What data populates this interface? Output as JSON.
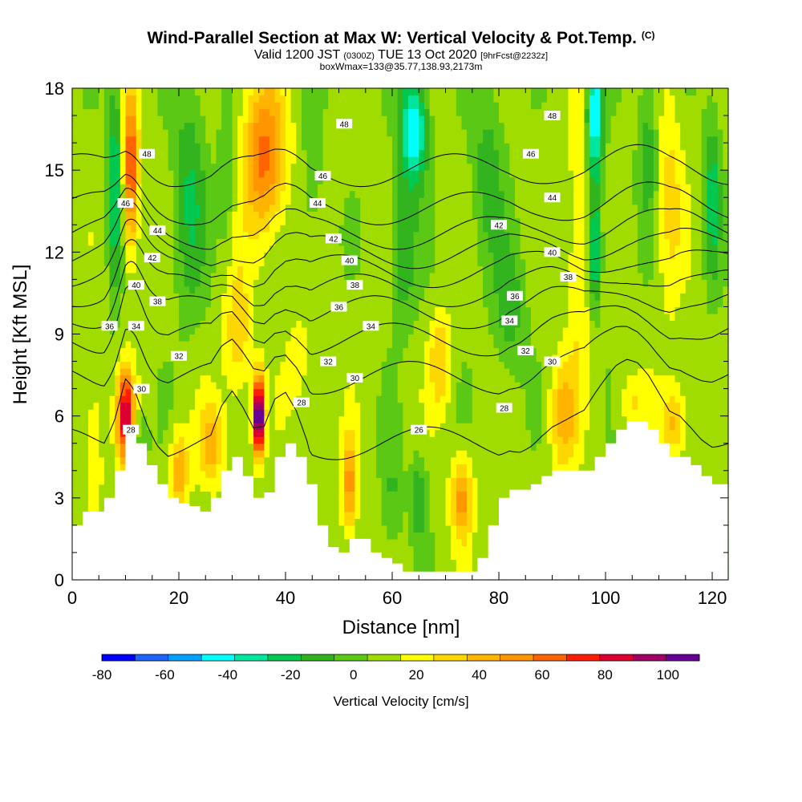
{
  "header": {
    "title_main": "Wind-Parallel Section at Max W: Vertical Velocity & Pot.Temp.",
    "title_copyright": "(C)",
    "valid_prefix": "Valid 1200 JST",
    "valid_utc": "(0300Z)",
    "valid_date": "TUE 13 Oct 2020",
    "forecast_info": "[9hrFcst@2232z]",
    "box_info": "boxWmax=133@35.77,138.93,2173m"
  },
  "chart_data": {
    "type": "heatmap",
    "title": "Wind-Parallel Section at Max W: Vertical Velocity & Pot.Temp.",
    "xlabel": "Distance [nm]",
    "ylabel": "Height [Kft MSL]",
    "xlim": [
      0,
      123
    ],
    "ylim": [
      0,
      18
    ],
    "x_ticks": [
      "0",
      "20",
      "40",
      "60",
      "80",
      "100",
      "120"
    ],
    "y_ticks": [
      "0",
      "3",
      "6",
      "9",
      "12",
      "15",
      "18"
    ],
    "colorbar": {
      "label": "Vertical Velocity [cm/s]",
      "min": -80,
      "max": 110,
      "step": 10,
      "tick_labels": [
        "-80",
        "-60",
        "-40",
        "-20",
        "0",
        "20",
        "40",
        "60",
        "80",
        "100"
      ],
      "colors": [
        "#0000ff",
        "#1e64ff",
        "#00a0ff",
        "#00ffff",
        "#00e6a0",
        "#00c850",
        "#32b41e",
        "#5ac814",
        "#a0dc00",
        "#ffff00",
        "#ffd700",
        "#ffb400",
        "#ff9600",
        "#ff6400",
        "#ff1e00",
        "#dc0032",
        "#a00064",
        "#640096"
      ]
    },
    "terrain_kft": [
      [
        0,
        2.0
      ],
      [
        2,
        2.5
      ],
      [
        4,
        2.5
      ],
      [
        6,
        3.0
      ],
      [
        8,
        4.0
      ],
      [
        10,
        5.5
      ],
      [
        12,
        5.0
      ],
      [
        14,
        4.2
      ],
      [
        16,
        3.5
      ],
      [
        18,
        3.0
      ],
      [
        20,
        2.8
      ],
      [
        22,
        2.7
      ],
      [
        24,
        2.5
      ],
      [
        26,
        3.0
      ],
      [
        28,
        4.0
      ],
      [
        30,
        4.5
      ],
      [
        32,
        3.8
      ],
      [
        34,
        3.0
      ],
      [
        36,
        3.2
      ],
      [
        38,
        4.5
      ],
      [
        40,
        5.0
      ],
      [
        42,
        4.5
      ],
      [
        44,
        3.5
      ],
      [
        46,
        2.0
      ],
      [
        48,
        1.2
      ],
      [
        50,
        1.0
      ],
      [
        52,
        1.5
      ],
      [
        54,
        1.5
      ],
      [
        56,
        1.0
      ],
      [
        58,
        0.8
      ],
      [
        60,
        0.6
      ],
      [
        62,
        0.3
      ],
      [
        64,
        0.3
      ],
      [
        66,
        0.3
      ],
      [
        68,
        0.3
      ],
      [
        70,
        0.3
      ],
      [
        72,
        0.3
      ],
      [
        74,
        0.3
      ],
      [
        76,
        0.8
      ],
      [
        78,
        2.0
      ],
      [
        80,
        3.0
      ],
      [
        82,
        3.3
      ],
      [
        84,
        3.3
      ],
      [
        86,
        3.5
      ],
      [
        88,
        3.8
      ],
      [
        90,
        4.0
      ],
      [
        92,
        4.0
      ],
      [
        94,
        4.0
      ],
      [
        96,
        4.0
      ],
      [
        98,
        4.5
      ],
      [
        100,
        5.0
      ],
      [
        102,
        5.5
      ],
      [
        104,
        5.8
      ],
      [
        106,
        5.8
      ],
      [
        108,
        5.5
      ],
      [
        110,
        5.0
      ],
      [
        112,
        4.5
      ],
      [
        114,
        4.5
      ],
      [
        116,
        4.2
      ],
      [
        118,
        3.8
      ],
      [
        120,
        3.5
      ],
      [
        122,
        3.5
      ],
      [
        123,
        3.5
      ]
    ],
    "w_features": [
      {
        "x": 10,
        "y": 6.0,
        "sx": 1.6,
        "sy": 1.6,
        "w": 75
      },
      {
        "x": 11,
        "y": 15.0,
        "sx": 1.4,
        "sy": 3.0,
        "w": 60
      },
      {
        "x": 35,
        "y": 6.0,
        "sx": 1.0,
        "sy": 1.4,
        "w": 115
      },
      {
        "x": 36,
        "y": 15.5,
        "sx": 4.0,
        "sy": 2.8,
        "w": 50
      },
      {
        "x": 31,
        "y": 9.0,
        "sx": 2.5,
        "sy": 2.5,
        "w": 25
      },
      {
        "x": 20,
        "y": 4.0,
        "sx": 1.8,
        "sy": 1.5,
        "w": 35
      },
      {
        "x": 26,
        "y": 5.0,
        "sx": 2.5,
        "sy": 1.5,
        "w": 30
      },
      {
        "x": 52,
        "y": 3.5,
        "sx": 1.5,
        "sy": 1.8,
        "w": 40
      },
      {
        "x": 73,
        "y": 3.0,
        "sx": 2.0,
        "sy": 1.5,
        "w": 40
      },
      {
        "x": 69,
        "y": 8.0,
        "sx": 2.0,
        "sy": 1.8,
        "w": 25
      },
      {
        "x": 92,
        "y": 6.0,
        "sx": 2.5,
        "sy": 2.0,
        "w": 30
      },
      {
        "x": 95,
        "y": 12.0,
        "sx": 2.0,
        "sy": 5.0,
        "w": 20
      },
      {
        "x": 112,
        "y": 14.0,
        "sx": 2.5,
        "sy": 4.0,
        "w": 20
      },
      {
        "x": 113,
        "y": 5.8,
        "sx": 2.5,
        "sy": 1.3,
        "w": 30
      },
      {
        "x": 105,
        "y": 6.5,
        "sx": 3.0,
        "sy": 1.0,
        "w": 15
      },
      {
        "x": 4,
        "y": 5.0,
        "sx": 2.0,
        "sy": 3.0,
        "w": 15
      },
      {
        "x": 43,
        "y": 8.0,
        "sx": 3.0,
        "sy": 2.5,
        "w": 10
      },
      {
        "x": 8,
        "y": 14.5,
        "sx": 1.3,
        "sy": 4.0,
        "w": -35
      },
      {
        "x": 22,
        "y": 14.0,
        "sx": 3.0,
        "sy": 4.0,
        "w": -25
      },
      {
        "x": 29,
        "y": 15.0,
        "sx": 1.5,
        "sy": 3.0,
        "w": -15
      },
      {
        "x": 45,
        "y": 14.0,
        "sx": 2.5,
        "sy": 3.5,
        "w": -10
      },
      {
        "x": 64,
        "y": 16.5,
        "sx": 2.5,
        "sy": 2.0,
        "w": -55
      },
      {
        "x": 62,
        "y": 12.0,
        "sx": 2.5,
        "sy": 2.5,
        "w": -25
      },
      {
        "x": 78,
        "y": 15.0,
        "sx": 3.0,
        "sy": 3.0,
        "w": -20
      },
      {
        "x": 98,
        "y": 17.0,
        "sx": 1.5,
        "sy": 2.5,
        "w": -55
      },
      {
        "x": 98,
        "y": 12.0,
        "sx": 1.2,
        "sy": 2.0,
        "w": -40
      },
      {
        "x": 108,
        "y": 16.0,
        "sx": 2.0,
        "sy": 3.0,
        "w": -20
      },
      {
        "x": 120,
        "y": 14.0,
        "sx": 1.5,
        "sy": 3.0,
        "w": -30
      },
      {
        "x": 60,
        "y": 3.0,
        "sx": 2.0,
        "sy": 2.0,
        "w": -15
      },
      {
        "x": 65,
        "y": 3.0,
        "sx": 1.5,
        "sy": 1.5,
        "w": -25
      },
      {
        "x": 82,
        "y": 10.0,
        "sx": 3.0,
        "sy": 2.5,
        "w": -20
      },
      {
        "x": 13,
        "y": 5.0,
        "sx": 1.2,
        "sy": 1.2,
        "w": -15
      }
    ],
    "theta_levels": [
      28,
      30,
      32,
      34,
      36,
      38,
      40,
      42,
      44,
      46
    ],
    "theta_base_kft": {
      "28": 5.0,
      "30": 7.4,
      "32": 8.8,
      "34": 9.8,
      "36": 10.6,
      "38": 11.3,
      "40": 12.0,
      "42": 12.7,
      "44": 13.6,
      "46": 15.0
    },
    "theta_labels": [
      {
        "x": 11,
        "y": 5.5,
        "text": "28"
      },
      {
        "x": 43,
        "y": 6.5,
        "text": "28"
      },
      {
        "x": 81,
        "y": 6.3,
        "text": "28"
      },
      {
        "x": 65,
        "y": 5.5,
        "text": "26"
      },
      {
        "x": 13,
        "y": 7.0,
        "text": "30"
      },
      {
        "x": 53,
        "y": 7.4,
        "text": "30"
      },
      {
        "x": 90,
        "y": 8.0,
        "text": "30"
      },
      {
        "x": 20,
        "y": 8.2,
        "text": "32"
      },
      {
        "x": 48,
        "y": 8.0,
        "text": "32"
      },
      {
        "x": 85,
        "y": 8.4,
        "text": "32"
      },
      {
        "x": 12,
        "y": 9.3,
        "text": "34"
      },
      {
        "x": 56,
        "y": 9.3,
        "text": "34"
      },
      {
        "x": 82,
        "y": 9.5,
        "text": "34"
      },
      {
        "x": 7,
        "y": 9.3,
        "text": "36"
      },
      {
        "x": 50,
        "y": 10.0,
        "text": "36"
      },
      {
        "x": 83,
        "y": 10.4,
        "text": "36"
      },
      {
        "x": 16,
        "y": 10.2,
        "text": "38"
      },
      {
        "x": 53,
        "y": 10.8,
        "text": "38"
      },
      {
        "x": 93,
        "y": 11.1,
        "text": "38"
      },
      {
        "x": 12,
        "y": 10.8,
        "text": "40"
      },
      {
        "x": 52,
        "y": 11.7,
        "text": "40"
      },
      {
        "x": 90,
        "y": 12.0,
        "text": "40"
      },
      {
        "x": 15,
        "y": 11.8,
        "text": "42"
      },
      {
        "x": 49,
        "y": 12.5,
        "text": "42"
      },
      {
        "x": 80,
        "y": 13.0,
        "text": "42"
      },
      {
        "x": 16,
        "y": 12.8,
        "text": "44"
      },
      {
        "x": 46,
        "y": 13.8,
        "text": "44"
      },
      {
        "x": 90,
        "y": 14.0,
        "text": "44"
      },
      {
        "x": 10,
        "y": 13.8,
        "text": "46"
      },
      {
        "x": 47,
        "y": 14.8,
        "text": "46"
      },
      {
        "x": 86,
        "y": 15.6,
        "text": "46"
      },
      {
        "x": 14,
        "y": 15.6,
        "text": "48"
      },
      {
        "x": 51,
        "y": 16.7,
        "text": "48"
      },
      {
        "x": 90,
        "y": 17.0,
        "text": "48"
      }
    ]
  }
}
